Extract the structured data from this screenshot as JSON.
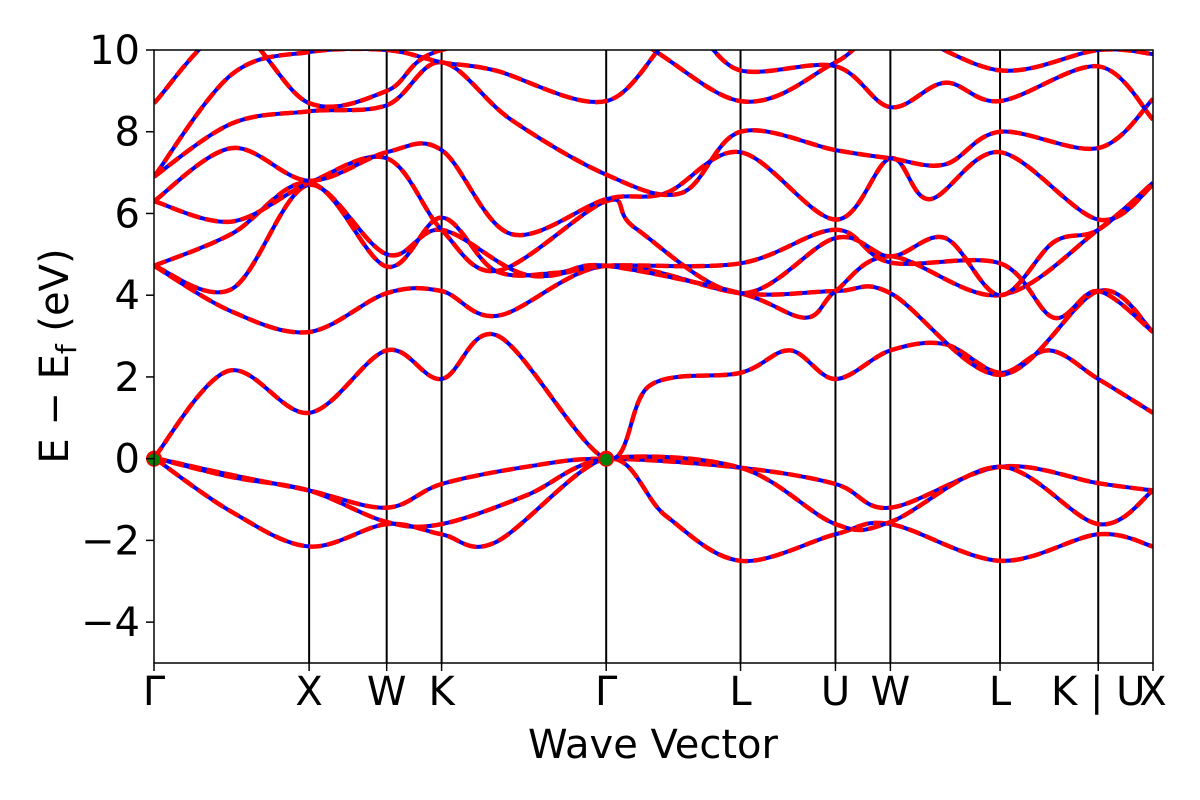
{
  "chart_data": {
    "type": "line",
    "title": "",
    "xlabel": "Wave Vector",
    "ylabel_parts": {
      "main": "E − E",
      "sub": "f",
      "unit": " (eV)"
    },
    "ylim": [
      -5,
      10
    ],
    "yticks": [
      -4,
      -2,
      0,
      2,
      4,
      6,
      8,
      10
    ],
    "ytick_labels": [
      "−4",
      "−2",
      "0",
      "2",
      "4",
      "6",
      "8",
      "10"
    ],
    "xlim": [
      0,
      6.44
    ],
    "kpoints": [
      {
        "label": "Γ",
        "x": 0.0
      },
      {
        "label": "X",
        "x": 1.0
      },
      {
        "label": "W",
        "x": 1.5
      },
      {
        "label": "K",
        "x": 1.854
      },
      {
        "label": "Γ",
        "x": 2.915
      },
      {
        "label": "L",
        "x": 3.781
      },
      {
        "label": "U",
        "x": 4.393
      },
      {
        "label": "W",
        "x": 4.747
      },
      {
        "label": "L",
        "x": 5.454
      },
      {
        "label": "K | U",
        "x": 6.087
      },
      {
        "label": "X",
        "x": 6.44
      }
    ],
    "grid": false,
    "series_styles": [
      {
        "color": "#0000ff",
        "style": "solid"
      },
      {
        "color": "#ff0000",
        "style": "dashed"
      }
    ],
    "markers": [
      {
        "x": 0.0,
        "y": 0.0,
        "color": "#008000"
      },
      {
        "x": 2.915,
        "y": 0.0,
        "color": "#008000"
      }
    ],
    "bands": [
      [
        [
          0,
          0.02
        ],
        [
          0.5,
          -0.4
        ],
        [
          1.0,
          -0.78
        ],
        [
          1.5,
          -1.2
        ],
        [
          1.854,
          -0.62
        ],
        [
          2.4,
          -0.2
        ],
        [
          2.915,
          0.0
        ],
        [
          3.781,
          -0.22
        ],
        [
          4.393,
          -0.62
        ],
        [
          4.747,
          -1.2
        ],
        [
          5.454,
          -0.2
        ],
        [
          6.087,
          -0.6
        ],
        [
          6.44,
          -0.78
        ]
      ],
      [
        [
          0,
          0.02
        ],
        [
          0.5,
          -1.3
        ],
        [
          1.0,
          -2.15
        ],
        [
          1.5,
          -1.6
        ],
        [
          1.854,
          -1.85
        ],
        [
          2.2,
          -2.05
        ],
        [
          2.915,
          0.0
        ],
        [
          3.3,
          -1.4
        ],
        [
          3.781,
          -2.5
        ],
        [
          4.393,
          -1.85
        ],
        [
          4.747,
          -1.6
        ],
        [
          5.454,
          -2.5
        ],
        [
          6.087,
          -1.85
        ],
        [
          6.44,
          -2.15
        ]
      ],
      [
        [
          0,
          0.02
        ],
        [
          0.5,
          -0.45
        ],
        [
          1.0,
          -0.78
        ],
        [
          1.5,
          -1.55
        ],
        [
          1.854,
          -1.6
        ],
        [
          2.4,
          -0.9
        ],
        [
          2.915,
          0.0
        ],
        [
          3.781,
          -0.22
        ],
        [
          4.393,
          -1.6
        ],
        [
          4.747,
          -1.55
        ],
        [
          5.454,
          -0.2
        ],
        [
          6.087,
          -1.6
        ],
        [
          6.44,
          -0.78
        ]
      ],
      [
        [
          0,
          0.02
        ],
        [
          0.48,
          2.15
        ],
        [
          1.0,
          1.12
        ],
        [
          1.5,
          2.65
        ],
        [
          1.854,
          1.95
        ],
        [
          2.22,
          3.0
        ],
        [
          2.915,
          0.0
        ],
        [
          3.2,
          1.8
        ],
        [
          3.781,
          2.1
        ],
        [
          4.1,
          2.65
        ],
        [
          4.393,
          1.95
        ],
        [
          4.747,
          2.65
        ],
        [
          5.1,
          2.8
        ],
        [
          5.454,
          2.1
        ],
        [
          5.77,
          2.65
        ],
        [
          6.087,
          1.95
        ],
        [
          6.44,
          1.12
        ]
      ],
      [
        [
          0,
          4.72
        ],
        [
          0.5,
          3.6
        ],
        [
          1.0,
          3.1
        ],
        [
          1.5,
          4.05
        ],
        [
          1.854,
          4.1
        ],
        [
          2.22,
          3.5
        ],
        [
          2.915,
          4.72
        ],
        [
          3.781,
          4.05
        ],
        [
          4.393,
          4.1
        ],
        [
          4.747,
          4.05
        ],
        [
          5.454,
          2.05
        ],
        [
          6.087,
          4.1
        ],
        [
          6.44,
          3.1
        ]
      ],
      [
        [
          0,
          4.72
        ],
        [
          0.5,
          4.15
        ],
        [
          1.0,
          6.7
        ],
        [
          1.5,
          4.7
        ],
        [
          1.854,
          5.9
        ],
        [
          2.2,
          4.6
        ],
        [
          2.6,
          4.55
        ],
        [
          2.915,
          4.72
        ],
        [
          3.781,
          4.05
        ],
        [
          4.2,
          3.45
        ],
        [
          4.393,
          4.1
        ],
        [
          4.747,
          4.95
        ],
        [
          5.454,
          4.0
        ],
        [
          6.087,
          5.6
        ],
        [
          6.44,
          6.75
        ]
      ],
      [
        [
          0,
          4.72
        ],
        [
          0.5,
          5.5
        ],
        [
          1.0,
          6.75
        ],
        [
          1.5,
          5.0
        ],
        [
          1.854,
          5.6
        ],
        [
          2.4,
          4.5
        ],
        [
          2.915,
          4.72
        ],
        [
          3.781,
          4.78
        ],
        [
          4.393,
          5.6
        ],
        [
          4.747,
          4.8
        ],
        [
          5.454,
          4.78
        ],
        [
          5.8,
          3.45
        ],
        [
          6.087,
          4.1
        ],
        [
          6.44,
          3.1
        ]
      ],
      [
        [
          0,
          6.3
        ],
        [
          0.5,
          5.8
        ],
        [
          1.0,
          6.75
        ],
        [
          1.5,
          7.35
        ],
        [
          1.854,
          5.6
        ],
        [
          2.22,
          4.6
        ],
        [
          2.915,
          6.3
        ],
        [
          3.1,
          5.65
        ],
        [
          3.781,
          4.05
        ],
        [
          4.393,
          5.4
        ],
        [
          4.747,
          4.95
        ],
        [
          5.1,
          5.4
        ],
        [
          5.454,
          4.0
        ],
        [
          5.8,
          5.3
        ],
        [
          6.087,
          5.6
        ],
        [
          6.44,
          6.75
        ]
      ],
      [
        [
          0,
          6.3
        ],
        [
          0.5,
          7.6
        ],
        [
          1.0,
          6.8
        ],
        [
          1.5,
          7.5
        ],
        [
          1.854,
          7.55
        ],
        [
          2.3,
          5.5
        ],
        [
          2.915,
          6.35
        ],
        [
          3.3,
          6.5
        ],
        [
          3.781,
          7.5
        ],
        [
          4.393,
          5.85
        ],
        [
          4.747,
          7.35
        ],
        [
          5.0,
          6.35
        ],
        [
          5.454,
          7.5
        ],
        [
          6.087,
          5.85
        ],
        [
          6.44,
          6.7
        ]
      ],
      [
        [
          0,
          6.9
        ],
        [
          0.5,
          8.2
        ],
        [
          1.0,
          8.5
        ],
        [
          1.5,
          8.65
        ],
        [
          1.854,
          9.7
        ],
        [
          2.3,
          8.3
        ],
        [
          2.915,
          6.95
        ],
        [
          3.4,
          6.5
        ],
        [
          3.781,
          8.0
        ],
        [
          4.393,
          7.55
        ],
        [
          4.747,
          7.35
        ],
        [
          5.1,
          7.2
        ],
        [
          5.454,
          8.0
        ],
        [
          6.087,
          7.6
        ],
        [
          6.44,
          8.8
        ]
      ],
      [
        [
          0,
          6.9
        ],
        [
          0.5,
          9.4
        ],
        [
          1.0,
          9.95
        ],
        [
          1.5,
          10.0
        ],
        [
          1.854,
          9.7
        ],
        [
          2.2,
          9.5
        ],
        [
          2.915,
          8.75
        ],
        [
          3.4,
          10.5
        ],
        [
          3.781,
          9.5
        ],
        [
          4.393,
          9.6
        ],
        [
          4.747,
          8.6
        ],
        [
          5.1,
          9.2
        ],
        [
          5.454,
          8.75
        ],
        [
          6.087,
          9.6
        ],
        [
          6.44,
          8.3
        ]
      ],
      [
        [
          0,
          8.7
        ],
        [
          0.5,
          10.5
        ],
        [
          1.0,
          8.7
        ],
        [
          1.5,
          9.0
        ],
        [
          1.854,
          10.0
        ],
        [
          2.915,
          10.5
        ],
        [
          3.781,
          8.75
        ],
        [
          4.393,
          9.7
        ],
        [
          4.747,
          10.5
        ],
        [
          5.454,
          9.5
        ],
        [
          6.087,
          10.0
        ],
        [
          6.44,
          9.9
        ]
      ]
    ]
  }
}
